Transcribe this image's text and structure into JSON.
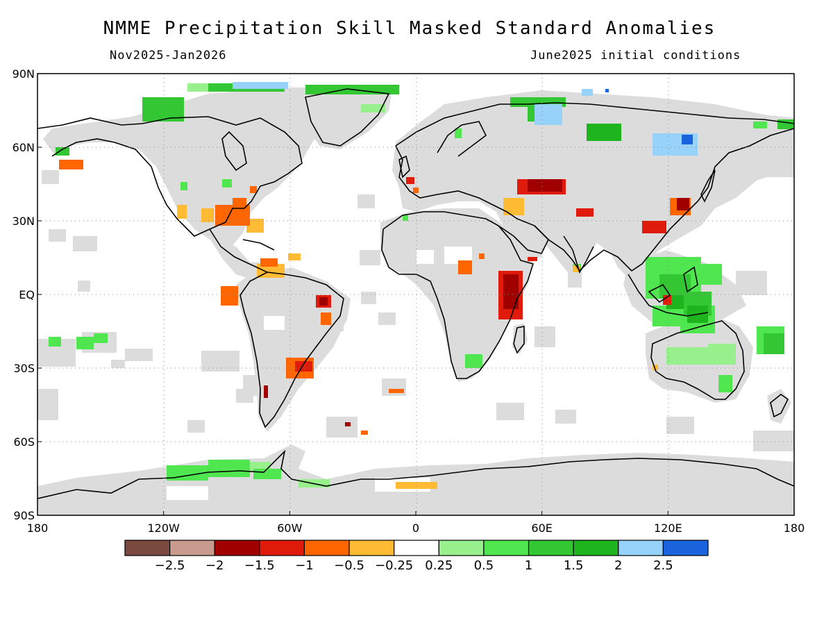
{
  "title": "NMME Precipitation Skill Masked Standard Anomalies",
  "subtitle_left": "Nov2025-Jan2026",
  "subtitle_right": "June2025 initial conditions",
  "lat_labels": [
    "90N",
    "60N",
    "30N",
    "EQ",
    "30S",
    "60S",
    "90S"
  ],
  "lat_values": [
    90,
    60,
    30,
    0,
    -30,
    -60,
    -90
  ],
  "lon_labels": [
    "180",
    "120W",
    "60W",
    "0",
    "60E",
    "120E",
    "180"
  ],
  "lon_values": [
    -180,
    -120,
    -60,
    0,
    60,
    120,
    180
  ],
  "colorbar": {
    "colors": [
      "#7a4a40",
      "#c89b8e",
      "#a00000",
      "#e01b0c",
      "#ff6600",
      "#ffbb33",
      "#ffffff",
      "#98f08c",
      "#50e650",
      "#33c833",
      "#1eb41e",
      "#96d2fa",
      "#1964dc"
    ],
    "labels": [
      "-2.5",
      "-2",
      "-1.5",
      "-1",
      "-0.5",
      "-0.25",
      "0.25",
      "0.5",
      "1",
      "1.5",
      "2",
      "2.5"
    ]
  },
  "colors": {
    "skill_mask": "#dcdcdc",
    "coast": "#000000",
    "grid": "#888888"
  }
}
